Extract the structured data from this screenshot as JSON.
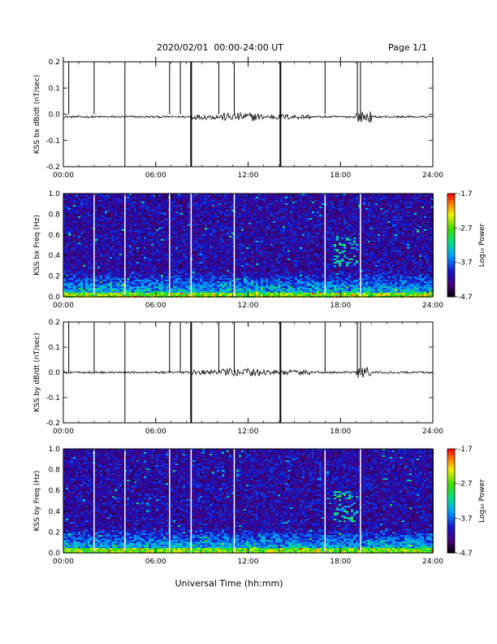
{
  "header": {
    "title": "2020/02/01  00:00-24:00 UT",
    "page": "Page 1/1"
  },
  "x_axis_title": "Universal Time (hh:mm)",
  "chart_data": [
    {
      "type": "line",
      "ylabel": "KSS bx dB/dt (nT/sec)",
      "xlim": [
        "00:00",
        "24:00"
      ],
      "ylim": [
        -0.2,
        0.2
      ],
      "x_ticks": [
        "00:00",
        "06:00",
        "12:00",
        "18:00",
        "24:00"
      ],
      "y_ticks": [
        "0.2",
        "0.1",
        "0.0",
        "-0.1",
        "-0.2"
      ],
      "baseline": -0.01,
      "spikes": [
        {
          "t": 0.35,
          "y0": 0.0,
          "y1": 0.2
        },
        {
          "t": 2.0,
          "y0": 0.0,
          "y1": 0.2
        },
        {
          "t": 4.0,
          "y0": -0.2,
          "y1": 0.2
        },
        {
          "t": 6.9,
          "y0": 0.0,
          "y1": 0.2
        },
        {
          "t": 7.6,
          "y0": 0.0,
          "y1": 0.2
        },
        {
          "t": 8.3,
          "y0": -0.2,
          "y1": 0.2
        },
        {
          "t": 10.1,
          "y0": 0.0,
          "y1": 0.2
        },
        {
          "t": 11.1,
          "y0": 0.0,
          "y1": 0.2
        },
        {
          "t": 14.1,
          "y0": -0.2,
          "y1": 0.2
        },
        {
          "t": 17.0,
          "y0": 0.0,
          "y1": 0.2
        },
        {
          "t": 19.1,
          "y0": 0.0,
          "y1": 0.2
        },
        {
          "t": 19.3,
          "y0": 0.0,
          "y1": 0.2
        }
      ]
    },
    {
      "type": "heatmap",
      "ylabel": "KSS bx Freq (Hz)",
      "xlim": [
        "00:00",
        "24:00"
      ],
      "ylim": [
        0.0,
        1.0
      ],
      "x_ticks": [
        "00:00",
        "06:00",
        "12:00",
        "18:00",
        "24:00"
      ],
      "y_ticks": [
        "1.0",
        "0.8",
        "0.6",
        "0.4",
        "0.2",
        "0.0"
      ],
      "colorbar": {
        "label": "Log₁₀ Power",
        "ticks": [
          "-1.7",
          "-2.7",
          "-3.7",
          "-4.7"
        ],
        "range": [
          -4.7,
          -1.7
        ]
      },
      "gaps_hours": [
        2.0,
        4.0,
        6.9,
        8.3,
        11.1,
        17.0,
        19.3
      ]
    },
    {
      "type": "line",
      "ylabel": "KSS by dB/dt (nT/sec)",
      "xlim": [
        "00:00",
        "24:00"
      ],
      "ylim": [
        -0.2,
        0.2
      ],
      "x_ticks": [
        "00:00",
        "06:00",
        "12:00",
        "18:00",
        "24:00"
      ],
      "y_ticks": [
        "0.2",
        "0.1",
        "0.0",
        "-0.1",
        "-0.2"
      ],
      "baseline": 0.0,
      "spikes": [
        {
          "t": 0.35,
          "y0": 0.0,
          "y1": 0.2
        },
        {
          "t": 2.0,
          "y0": 0.0,
          "y1": 0.2
        },
        {
          "t": 4.0,
          "y0": -0.2,
          "y1": 0.2
        },
        {
          "t": 6.9,
          "y0": 0.0,
          "y1": 0.2
        },
        {
          "t": 7.6,
          "y0": 0.0,
          "y1": 0.2
        },
        {
          "t": 8.3,
          "y0": -0.2,
          "y1": 0.2
        },
        {
          "t": 10.1,
          "y0": 0.0,
          "y1": 0.2
        },
        {
          "t": 11.1,
          "y0": 0.0,
          "y1": 0.2
        },
        {
          "t": 14.1,
          "y0": -0.2,
          "y1": 0.2
        },
        {
          "t": 17.0,
          "y0": 0.0,
          "y1": 0.2
        },
        {
          "t": 19.1,
          "y0": 0.0,
          "y1": 0.2
        },
        {
          "t": 19.3,
          "y0": 0.0,
          "y1": 0.2
        }
      ]
    },
    {
      "type": "heatmap",
      "ylabel": "KSS by Freq (Hz)",
      "xlim": [
        "00:00",
        "24:00"
      ],
      "ylim": [
        0.0,
        1.0
      ],
      "x_ticks": [
        "00:00",
        "06:00",
        "12:00",
        "18:00",
        "24:00"
      ],
      "y_ticks": [
        "1.0",
        "0.8",
        "0.6",
        "0.4",
        "0.2",
        "0.0"
      ],
      "colorbar": {
        "label": "Log₁₀ Power",
        "ticks": [
          "-1.7",
          "-2.7",
          "-3.7",
          "-4.7"
        ],
        "range": [
          -4.7,
          -1.7
        ]
      },
      "gaps_hours": [
        2.0,
        4.0,
        6.9,
        8.3,
        11.1,
        17.0,
        19.3
      ]
    }
  ]
}
